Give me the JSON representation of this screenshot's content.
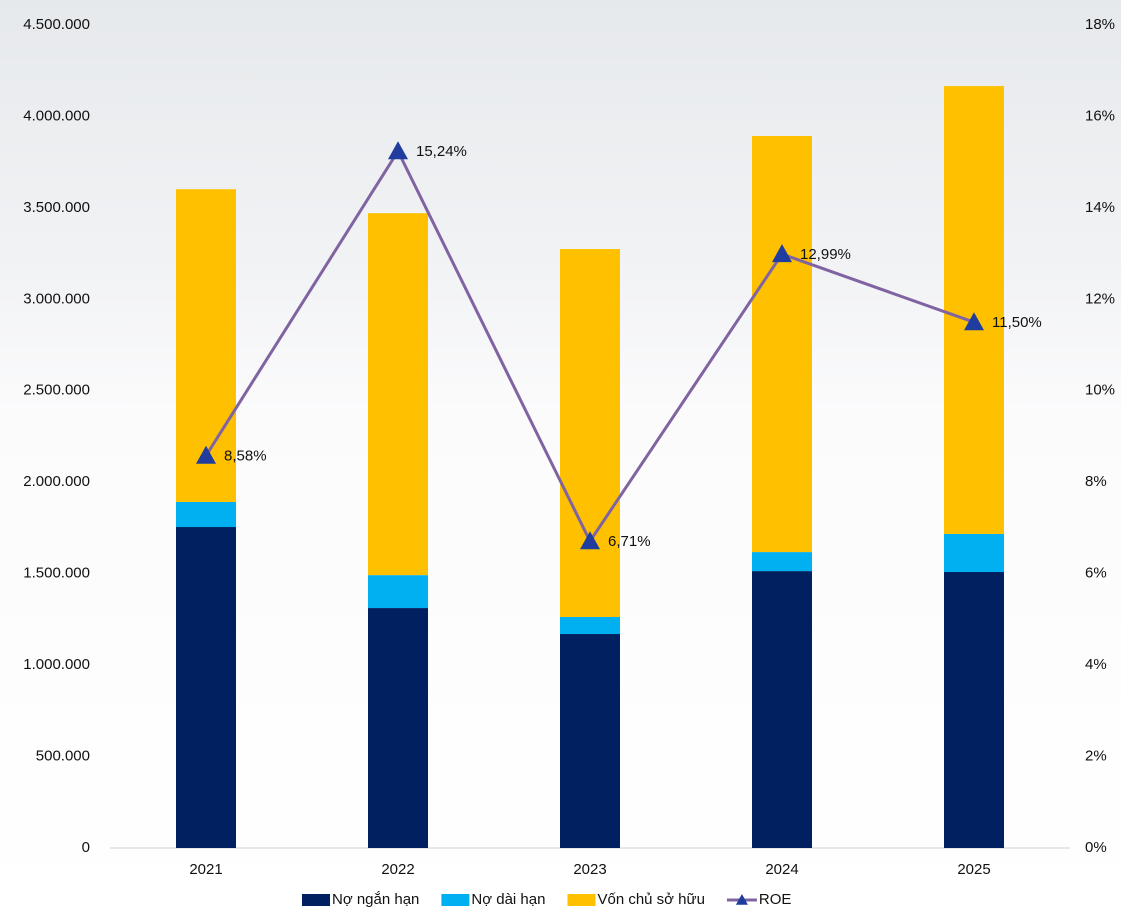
{
  "chart_data": {
    "type": "bar-line",
    "categories": [
      "2021",
      "2022",
      "2023",
      "2024",
      "2025"
    ],
    "series": [
      {
        "name": "Nợ ngắn hạn",
        "color": "#002060",
        "type": "bar",
        "values": [
          1755000,
          1312000,
          1170000,
          1514000,
          1509000
        ]
      },
      {
        "name": "Nợ dài hạn",
        "color": "#00b0f0",
        "type": "bar",
        "values": [
          137000,
          180000,
          93000,
          104000,
          208000
        ]
      },
      {
        "name": "Vốn chủ sở hữu",
        "color": "#ffc000",
        "type": "bar",
        "values": [
          1710000,
          1979000,
          2012000,
          2275000,
          2449000
        ]
      },
      {
        "name": "ROE",
        "color": "#8064a2",
        "marker_color": "#1f3c9e",
        "type": "line",
        "axis": "y2",
        "values": [
          8.58,
          15.24,
          6.71,
          12.99,
          11.5
        ],
        "value_labels": [
          "8,58%",
          "15,24%",
          "6,71%",
          "12,99%",
          "11,50%"
        ]
      }
    ],
    "ylim": [
      0,
      4500000
    ],
    "yticks": [
      0,
      {
        "value": 500000,
        "label": "500.000"
      },
      {
        "value": 1000000,
        "label": "1.000.000"
      },
      {
        "value": 1500000,
        "label": "1.500.000"
      },
      {
        "value": 2000000,
        "label": "2.000.000"
      },
      {
        "value": 2500000,
        "label": "2.500.000"
      },
      {
        "value": 3000000,
        "label": "3.000.000"
      },
      {
        "value": 3500000,
        "label": "3.500.000"
      },
      {
        "value": 4000000,
        "label": "4.000.000"
      },
      {
        "value": 4500000,
        "label": "4.500.000"
      }
    ],
    "y2lim": [
      0,
      18
    ],
    "y2ticks": [
      {
        "value": 0,
        "label": "0%"
      },
      {
        "value": 2,
        "label": "2%"
      },
      {
        "value": 4,
        "label": "4%"
      },
      {
        "value": 6,
        "label": "6%"
      },
      {
        "value": 8,
        "label": "8%"
      },
      {
        "value": 10,
        "label": "10%"
      },
      {
        "value": 12,
        "label": "12%"
      },
      {
        "value": 14,
        "label": "14%"
      },
      {
        "value": 16,
        "label": "16%"
      },
      {
        "value": 18,
        "label": "18%"
      }
    ],
    "legend": "bottom"
  }
}
